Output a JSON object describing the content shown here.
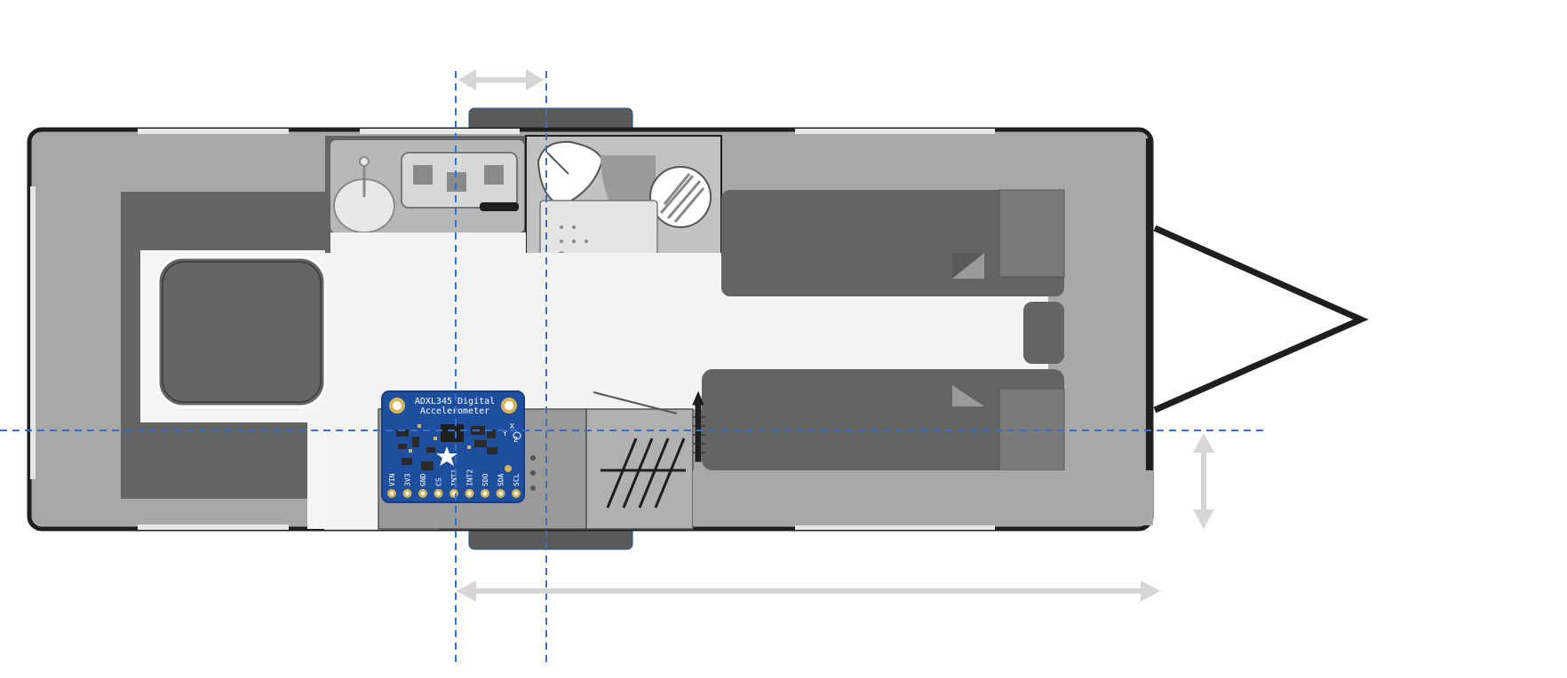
{
  "colors": {
    "background": "#ffffff",
    "outline": "#1e1e1e",
    "outer_shell": "#a8a8a8",
    "dark_fill": "#646464",
    "mid_fill": "#8a8a8a",
    "light_fill": "#c2c2c2",
    "floor": "#f4f4f4",
    "window": "#e6e6e6",
    "guide_line": "#3a6fc4",
    "dimension_arrow": "#d6d6d6",
    "pcb_blue": "#1e4f9e",
    "pcb_dark": "#163d7d",
    "pcb_gold": "#d7b45a",
    "pcb_text": "#ffffff"
  },
  "sensor_board": {
    "title_line1": "ADXL345 Digital",
    "title_line2": "Accelerometer",
    "pins": [
      "VIN",
      "3V3",
      "GND",
      "CS",
      "INT1",
      "INT2",
      "SDO",
      "SDA",
      "SCL"
    ],
    "axis_labels": [
      "X",
      "Y",
      "Z"
    ]
  },
  "icons": {
    "star": "star-icon",
    "sink": "sink-icon",
    "toilet": "toilet-icon",
    "shower": "shower-drain-icon",
    "hob": "hob-icon"
  }
}
